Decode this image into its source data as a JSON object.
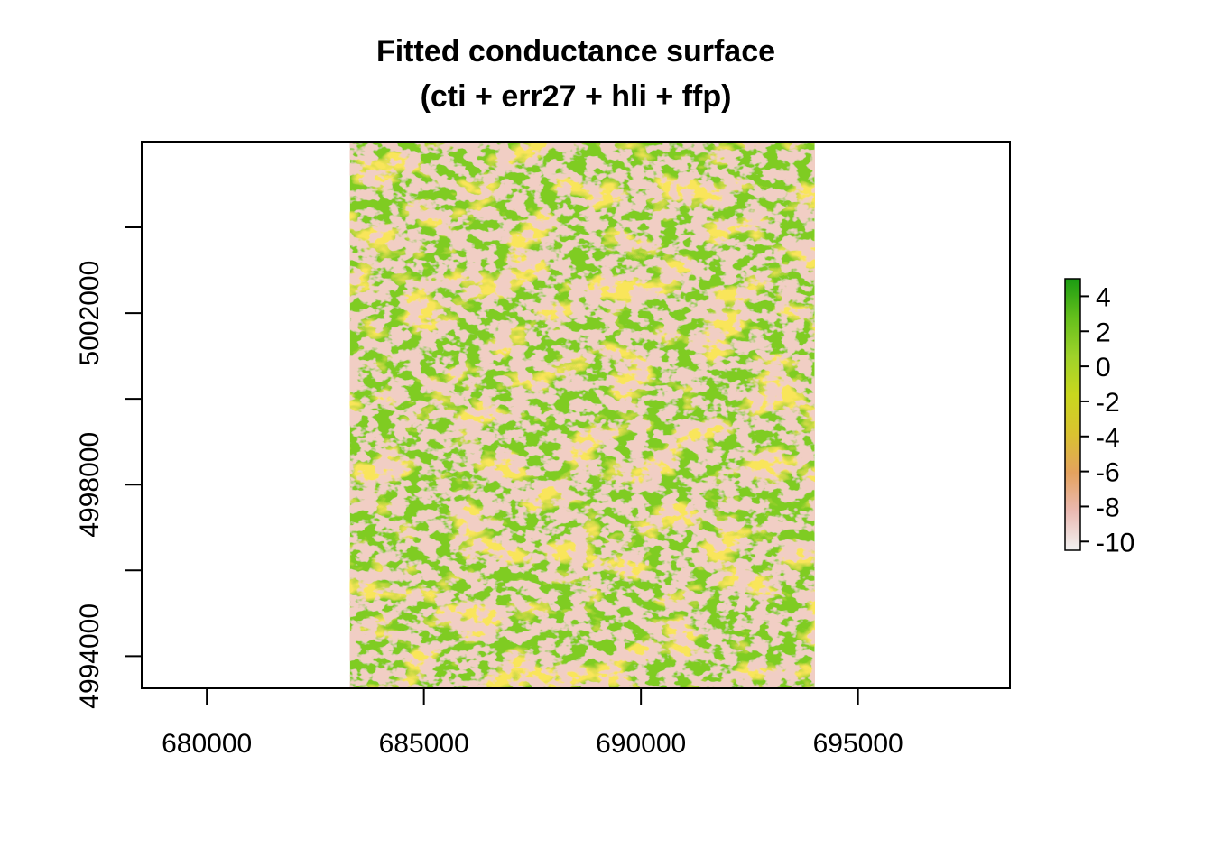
{
  "chart_data": {
    "type": "heatmap",
    "title": "Fitted conductance surface",
    "subtitle": "(cti + err27 + hli + ffp)",
    "xlabel": "",
    "ylabel": "",
    "xlim": [
      678500,
      698500
    ],
    "ylim": [
      4993250,
      5006000
    ],
    "raster_extent": {
      "xmin": 683300,
      "xmax": 694000,
      "ymin": 4993250,
      "ymax": 5006000
    },
    "x_ticks": [
      680000,
      685000,
      690000,
      695000
    ],
    "x_tick_labels": [
      "680000",
      "685000",
      "690000",
      "695000"
    ],
    "y_ticks": [
      4994000,
      4996000,
      4998000,
      5000000,
      5002000,
      5004000
    ],
    "y_tick_labels": [
      "4994000",
      "",
      "4998000",
      "",
      "5002000",
      ""
    ],
    "legend": {
      "position": "right",
      "range": [
        -10.5,
        5
      ],
      "ticks": [
        4,
        2,
        0,
        -2,
        -4,
        -6,
        -8,
        -10
      ],
      "tick_labels": [
        "4",
        "2",
        "0",
        "-2",
        "-4",
        "-6",
        "-8",
        "-10"
      ],
      "colors": [
        "#f2f2f2",
        "#eab9b2",
        "#e4a25e",
        "#d9c230",
        "#c9d71e",
        "#9fd22a",
        "#65bf1c",
        "#1a9c12"
      ]
    },
    "grid": false
  }
}
